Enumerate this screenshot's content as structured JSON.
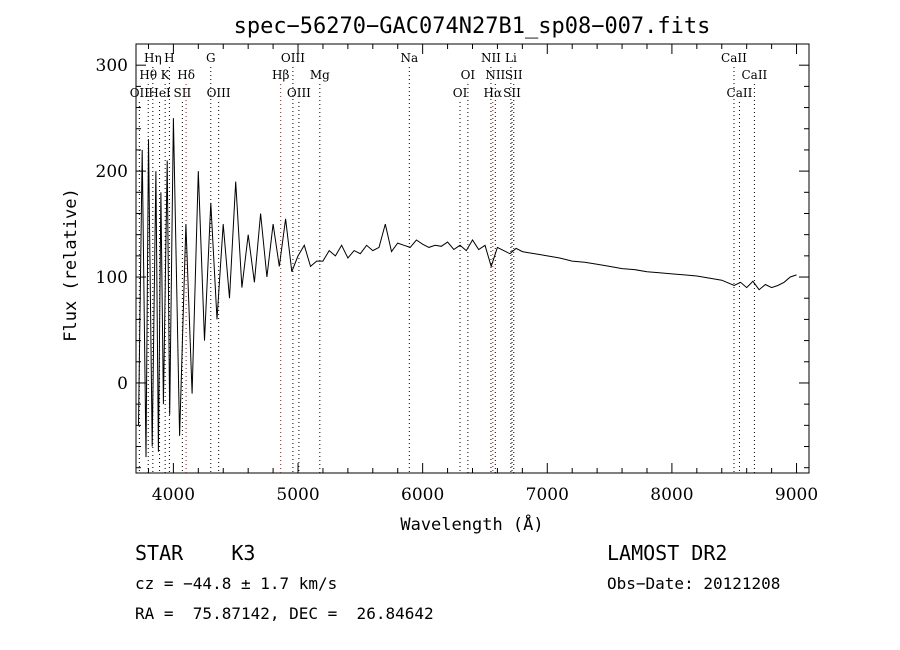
{
  "chart_data": {
    "type": "line",
    "title": "spec−56270−GAC074N27B1_sp08−007.fits",
    "xlabel": "Wavelength (Å)",
    "ylabel": "Flux (relative)",
    "xlim": [
      3700,
      9100
    ],
    "ylim": [
      -85,
      320
    ],
    "x_ticks": [
      4000,
      5000,
      6000,
      7000,
      8000,
      9000
    ],
    "y_ticks": [
      0,
      100,
      200,
      300
    ],
    "grid": false,
    "series": [
      {
        "color": "#000000",
        "x": [
          3720,
          3750,
          3780,
          3800,
          3830,
          3860,
          3880,
          3900,
          3920,
          3950,
          3970,
          4000,
          4050,
          4100,
          4150,
          4200,
          4250,
          4300,
          4350,
          4400,
          4450,
          4500,
          4550,
          4600,
          4650,
          4700,
          4750,
          4800,
          4850,
          4900,
          4950,
          5000,
          5050,
          5100,
          5150,
          5200,
          5250,
          5300,
          5350,
          5400,
          5450,
          5500,
          5550,
          5600,
          5650,
          5700,
          5750,
          5800,
          5850,
          5900,
          5950,
          6000,
          6050,
          6100,
          6150,
          6200,
          6250,
          6300,
          6350,
          6400,
          6450,
          6500,
          6550,
          6600,
          6650,
          6700,
          6750,
          6800,
          6850,
          6900,
          6950,
          7000,
          7100,
          7200,
          7300,
          7400,
          7500,
          7600,
          7700,
          7800,
          7900,
          8000,
          8100,
          8200,
          8300,
          8400,
          8500,
          8550,
          8600,
          8650,
          8700,
          8750,
          8800,
          8850,
          8900,
          8950,
          9000
        ],
        "y": [
          -40,
          220,
          -70,
          230,
          -60,
          200,
          -65,
          180,
          -20,
          210,
          -30,
          250,
          -50,
          150,
          -10,
          200,
          40,
          170,
          60,
          150,
          80,
          190,
          90,
          140,
          95,
          160,
          100,
          150,
          110,
          155,
          105,
          120,
          130,
          110,
          115,
          115,
          125,
          120,
          130,
          118,
          125,
          122,
          130,
          125,
          128,
          150,
          124,
          132,
          130,
          128,
          135,
          131,
          128,
          130,
          129,
          133,
          126,
          130,
          125,
          135,
          126,
          130,
          110,
          128,
          125,
          122,
          127,
          124,
          123,
          122,
          121,
          120,
          118,
          115,
          114,
          112,
          110,
          108,
          107,
          105,
          104,
          103,
          102,
          101,
          99,
          97,
          92,
          95,
          90,
          96,
          88,
          93,
          90,
          92,
          95,
          100,
          102
        ]
      }
    ],
    "spectral_lines": [
      {
        "label": "OII",
        "x": 3727,
        "row": 3,
        "color": "#000000"
      },
      {
        "label": "Hη",
        "x": 3835,
        "row": 1,
        "color": "#000000"
      },
      {
        "label": "Hθ",
        "x": 3798,
        "row": 2,
        "color": "#000000"
      },
      {
        "label": "HeI",
        "x": 3889,
        "row": 3,
        "color": "#000000"
      },
      {
        "label": "K",
        "x": 3934,
        "row": 2,
        "color": "#000000"
      },
      {
        "label": "H",
        "x": 3968,
        "row": 1,
        "color": "#000000"
      },
      {
        "label": "SII",
        "x": 4072,
        "row": 3,
        "color": "#000000"
      },
      {
        "label": "Hδ",
        "x": 4102,
        "row": 2,
        "color": "#cc0000"
      },
      {
        "label": "G",
        "x": 4300,
        "row": 1,
        "color": "#000000"
      },
      {
        "label": "OIII",
        "x": 4363,
        "row": 3,
        "color": "#000000"
      },
      {
        "label": "Hβ",
        "x": 4861,
        "row": 2,
        "color": "#cc0000"
      },
      {
        "label": "OIII",
        "x": 4959,
        "row": 1,
        "color": "#000000"
      },
      {
        "label": "OIII",
        "x": 5007,
        "row": 3,
        "color": "#000000"
      },
      {
        "label": "Mg",
        "x": 5175,
        "row": 2,
        "color": "#000000"
      },
      {
        "label": "Na",
        "x": 5893,
        "row": 1,
        "color": "#000000"
      },
      {
        "label": "OI",
        "x": 6300,
        "row": 3,
        "color": "#000000"
      },
      {
        "label": "OI",
        "x": 6363,
        "row": 2,
        "color": "#000000"
      },
      {
        "label": "NII",
        "x": 6548,
        "row": 1,
        "color": "#000000"
      },
      {
        "label": "Hα",
        "x": 6563,
        "row": 3,
        "color": "#cc0000"
      },
      {
        "label": "NII",
        "x": 6583,
        "row": 2,
        "color": "#000000"
      },
      {
        "label": "Li",
        "x": 6708,
        "row": 1,
        "color": "#000000"
      },
      {
        "label": "SII",
        "x": 6717,
        "row": 3,
        "color": "#000000"
      },
      {
        "label": "SII",
        "x": 6731,
        "row": 2,
        "color": "#000000"
      },
      {
        "label": "CaII",
        "x": 8498,
        "row": 1,
        "color": "#000000"
      },
      {
        "label": "CaII",
        "x": 8542,
        "row": 3,
        "color": "#000000"
      },
      {
        "label": "CaII",
        "x": 8662,
        "row": 2,
        "color": "#000000"
      }
    ]
  },
  "info": {
    "class_line": "STAR    K3",
    "survey": "LAMOST DR2",
    "cz": "cz = −44.8 ± 1.7 km/s",
    "obs_date": "Obs−Date: 20121208",
    "coords": "RA =  75.87142, DEC =  26.84642"
  }
}
